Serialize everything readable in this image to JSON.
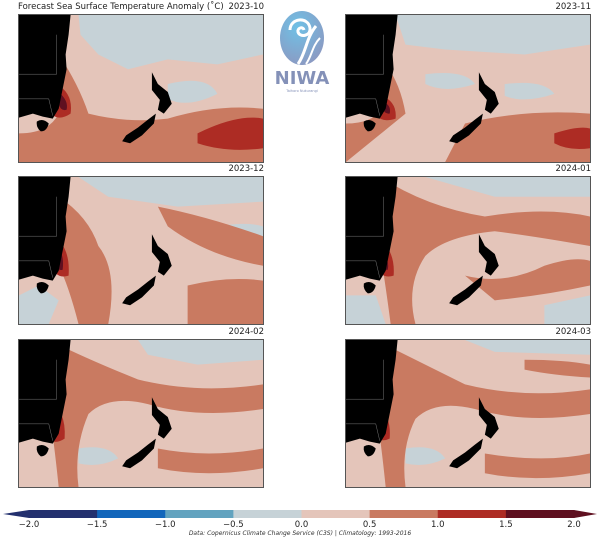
{
  "title": "Forecast Sea Surface Temperature Anomaly (˚C)",
  "logo": {
    "name": "NIWA",
    "subtitle": "Taihoro Nukurangi"
  },
  "chart_data": {
    "type": "heatmap",
    "title": "Forecast Sea Surface Temperature Anomaly (˚C)",
    "panels": [
      "2023-10",
      "2023-11",
      "2023-12",
      "2024-01",
      "2024-02",
      "2024-03"
    ],
    "colorbar": {
      "boundaries": [
        -2.0,
        -1.5,
        -1.0,
        -0.5,
        0.0,
        0.5,
        1.0,
        1.5,
        2.0
      ],
      "tick_labels": [
        "−2.0",
        "−1.5",
        "−1.0",
        "−0.5",
        "0.0",
        "0.5",
        "1.0",
        "1.5",
        "2.0"
      ],
      "colors": [
        "#23306e",
        "#1266bb",
        "#62a3bf",
        "#c6d2d7",
        "#e4c5ba",
        "#c97a61",
        "#ad2c24",
        "#5f1020"
      ],
      "extend": "both"
    }
  },
  "credit": "Data: Copernicus Climate Change Service (C3S) | Climatology: 1993-2016"
}
